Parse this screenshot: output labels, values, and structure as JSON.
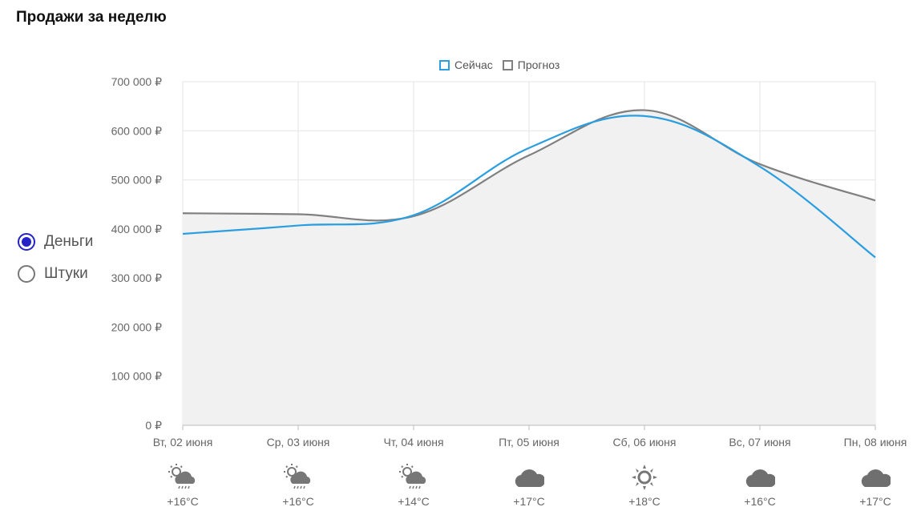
{
  "title": "Продажи за неделю",
  "legend": [
    {
      "label": "Сейчас",
      "color": "#2a9ee0"
    },
    {
      "label": "Прогноз",
      "color": "#808080"
    }
  ],
  "toggle": {
    "options": [
      {
        "label": "Деньги",
        "checked": true
      },
      {
        "label": "Штуки",
        "checked": false
      }
    ]
  },
  "chart_data": {
    "type": "line",
    "x": [
      "Вт, 02 июня",
      "Ср, 03 июня",
      "Чт, 04 июня",
      "Пт, 05 июня",
      "Сб, 06 июня",
      "Вс, 07 июня",
      "Пн, 08 июня"
    ],
    "ylim": [
      0,
      700000
    ],
    "yticks": [
      "0 ₽",
      "100 000 ₽",
      "200 000 ₽",
      "300 000 ₽",
      "400 000 ₽",
      "500 000 ₽",
      "600 000 ₽",
      "700 000 ₽"
    ],
    "grid": true,
    "legend_position": "top-center",
    "series": [
      {
        "name": "Сейчас",
        "color": "#2a9ee0",
        "values": [
          390000,
          407000,
          428000,
          565000,
          630000,
          527000,
          342000
        ]
      },
      {
        "name": "Прогноз",
        "color": "#808080",
        "area": true,
        "values": [
          432000,
          430000,
          426000,
          550000,
          642000,
          532000,
          458000
        ]
      }
    ]
  },
  "weather": [
    {
      "icon": "sun-cloud-rain-icon",
      "temp": "+16°C"
    },
    {
      "icon": "sun-cloud-rain-icon",
      "temp": "+16°C"
    },
    {
      "icon": "sun-cloud-rain-icon",
      "temp": "+14°C"
    },
    {
      "icon": "cloud-icon",
      "temp": "+17°C"
    },
    {
      "icon": "sun-icon",
      "temp": "+18°C"
    },
    {
      "icon": "cloud-icon",
      "temp": "+16°C"
    },
    {
      "icon": "cloud-icon",
      "temp": "+17°C"
    }
  ]
}
